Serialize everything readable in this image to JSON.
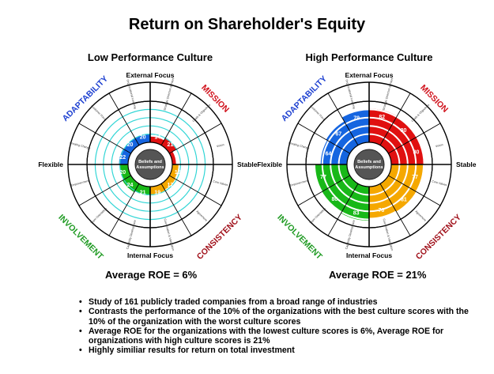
{
  "title": "Return on Shareholder's Equity",
  "diagrams": [
    {
      "id": "low",
      "heading": "Low Performance Culture",
      "roe_label": "Average ROE = 6%",
      "center_label": [
        "Beliefs and",
        "Assumptions"
      ],
      "axes": {
        "top": "External Focus",
        "bottom": "Internal Focus",
        "left": "Flexible",
        "right": "Stable"
      },
      "traits": [
        {
          "name": "ADAPTABILITY",
          "color": "#1c3fd0",
          "position": "top-left"
        },
        {
          "name": "MISSION",
          "color": "#d0101a",
          "position": "top-right"
        },
        {
          "name": "INVOLVEMENT",
          "color": "#1e9a22",
          "position": "bottom-left"
        },
        {
          "name": "CONSISTENCY",
          "color": "#a0101a",
          "position": "bottom-right"
        }
      ],
      "segment_labels": [
        "Strategic Direction & Intent",
        "Goals & Objectives",
        "Vision",
        "Core Values",
        "Agreement",
        "Coordination & Integration",
        "Capability Development",
        "Team Orientation",
        "Empowerment",
        "Creating Change",
        "Customer Focus",
        "Organizational Learning"
      ],
      "scores": [
        14,
        21,
        9,
        15,
        17,
        19,
        21,
        24,
        20,
        22,
        20,
        20
      ]
    },
    {
      "id": "high",
      "heading": "High Performance Culture",
      "roe_label": "Average ROE = 21%",
      "center_label": [
        "Beliefs and",
        "Assumptions"
      ],
      "axes": {
        "top": "External Focus",
        "bottom": "Internal Focus",
        "left": "Flexible",
        "right": "Stable"
      },
      "traits": [
        {
          "name": "ADAPTABILITY",
          "color": "#1c3fd0",
          "position": "top-left"
        },
        {
          "name": "MISSION",
          "color": "#d0101a",
          "position": "top-right"
        },
        {
          "name": "INVOLVEMENT",
          "color": "#1e9a22",
          "position": "bottom-left"
        },
        {
          "name": "CONSISTENCY",
          "color": "#a0101a",
          "position": "bottom-right"
        }
      ],
      "segment_labels": [
        "Strategic Direction & Intent",
        "Goals & Objectives",
        "Vision",
        "Core Values",
        "Agreement",
        "Coordination & Integration",
        "Capability Development",
        "Team Orientation",
        "Empowerment",
        "Creating Change",
        "Customer Focus",
        "Organizational Learning"
      ],
      "scores": [
        82,
        80,
        80,
        77,
        81,
        76,
        83,
        80,
        77,
        64,
        67,
        79
      ]
    }
  ],
  "colors": {
    "adaptability": "#1565e0",
    "mission": "#e01010",
    "consistency": "#f5a800",
    "involvement": "#18b818",
    "grid": "#33d6d6"
  },
  "notes": [
    "Study of 161 publicly traded companies from a broad range of industries",
    "Contrasts the performance of the 10% of the organizations with the best culture scores with the 10% of the organization with the worst culture scores",
    "Average ROE for the organizations with the lowest culture scores is 6%,  Average ROE for organizations with high culture scores is 21%",
    "Highly similiar results for return on total investment"
  ]
}
